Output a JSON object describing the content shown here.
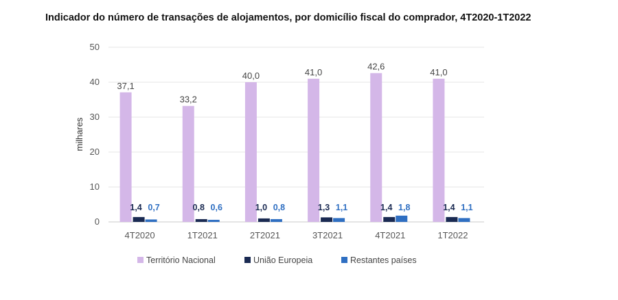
{
  "chart_data": {
    "type": "bar",
    "title": "Indicador do número de transações de alojamentos, por domicílio fiscal do comprador, 4T2020-1T2022",
    "xlabel": "",
    "ylabel": "milhares",
    "ylim": [
      0,
      50
    ],
    "yticks": [
      "0",
      "10",
      "20",
      "30",
      "40",
      "50"
    ],
    "categories": [
      "4T2020",
      "1T2021",
      "2T2021",
      "3T2021",
      "4T2021",
      "1T2022"
    ],
    "series": [
      {
        "name": "Território Nacional",
        "color": "#d4b7e8",
        "values": [
          37.1,
          33.2,
          40.0,
          41.0,
          42.6,
          41.0
        ],
        "labels": [
          "37,1",
          "33,2",
          "40,0",
          "41,0",
          "42,6",
          "41,0"
        ]
      },
      {
        "name": "União Europeia",
        "color": "#1a2a52",
        "values": [
          1.4,
          0.8,
          1.0,
          1.3,
          1.4,
          1.4
        ],
        "labels": [
          "1,4",
          "0,8",
          "1,0",
          "1,3",
          "1,4",
          "1,4"
        ]
      },
      {
        "name": "Restantes países",
        "color": "#2f6fc2",
        "values": [
          0.7,
          0.6,
          0.8,
          1.1,
          1.8,
          1.1
        ],
        "labels": [
          "0,7",
          "0,6",
          "0,8",
          "1,1",
          "1,8",
          "1,1"
        ]
      }
    ],
    "grid": true,
    "legend": "bottom"
  }
}
